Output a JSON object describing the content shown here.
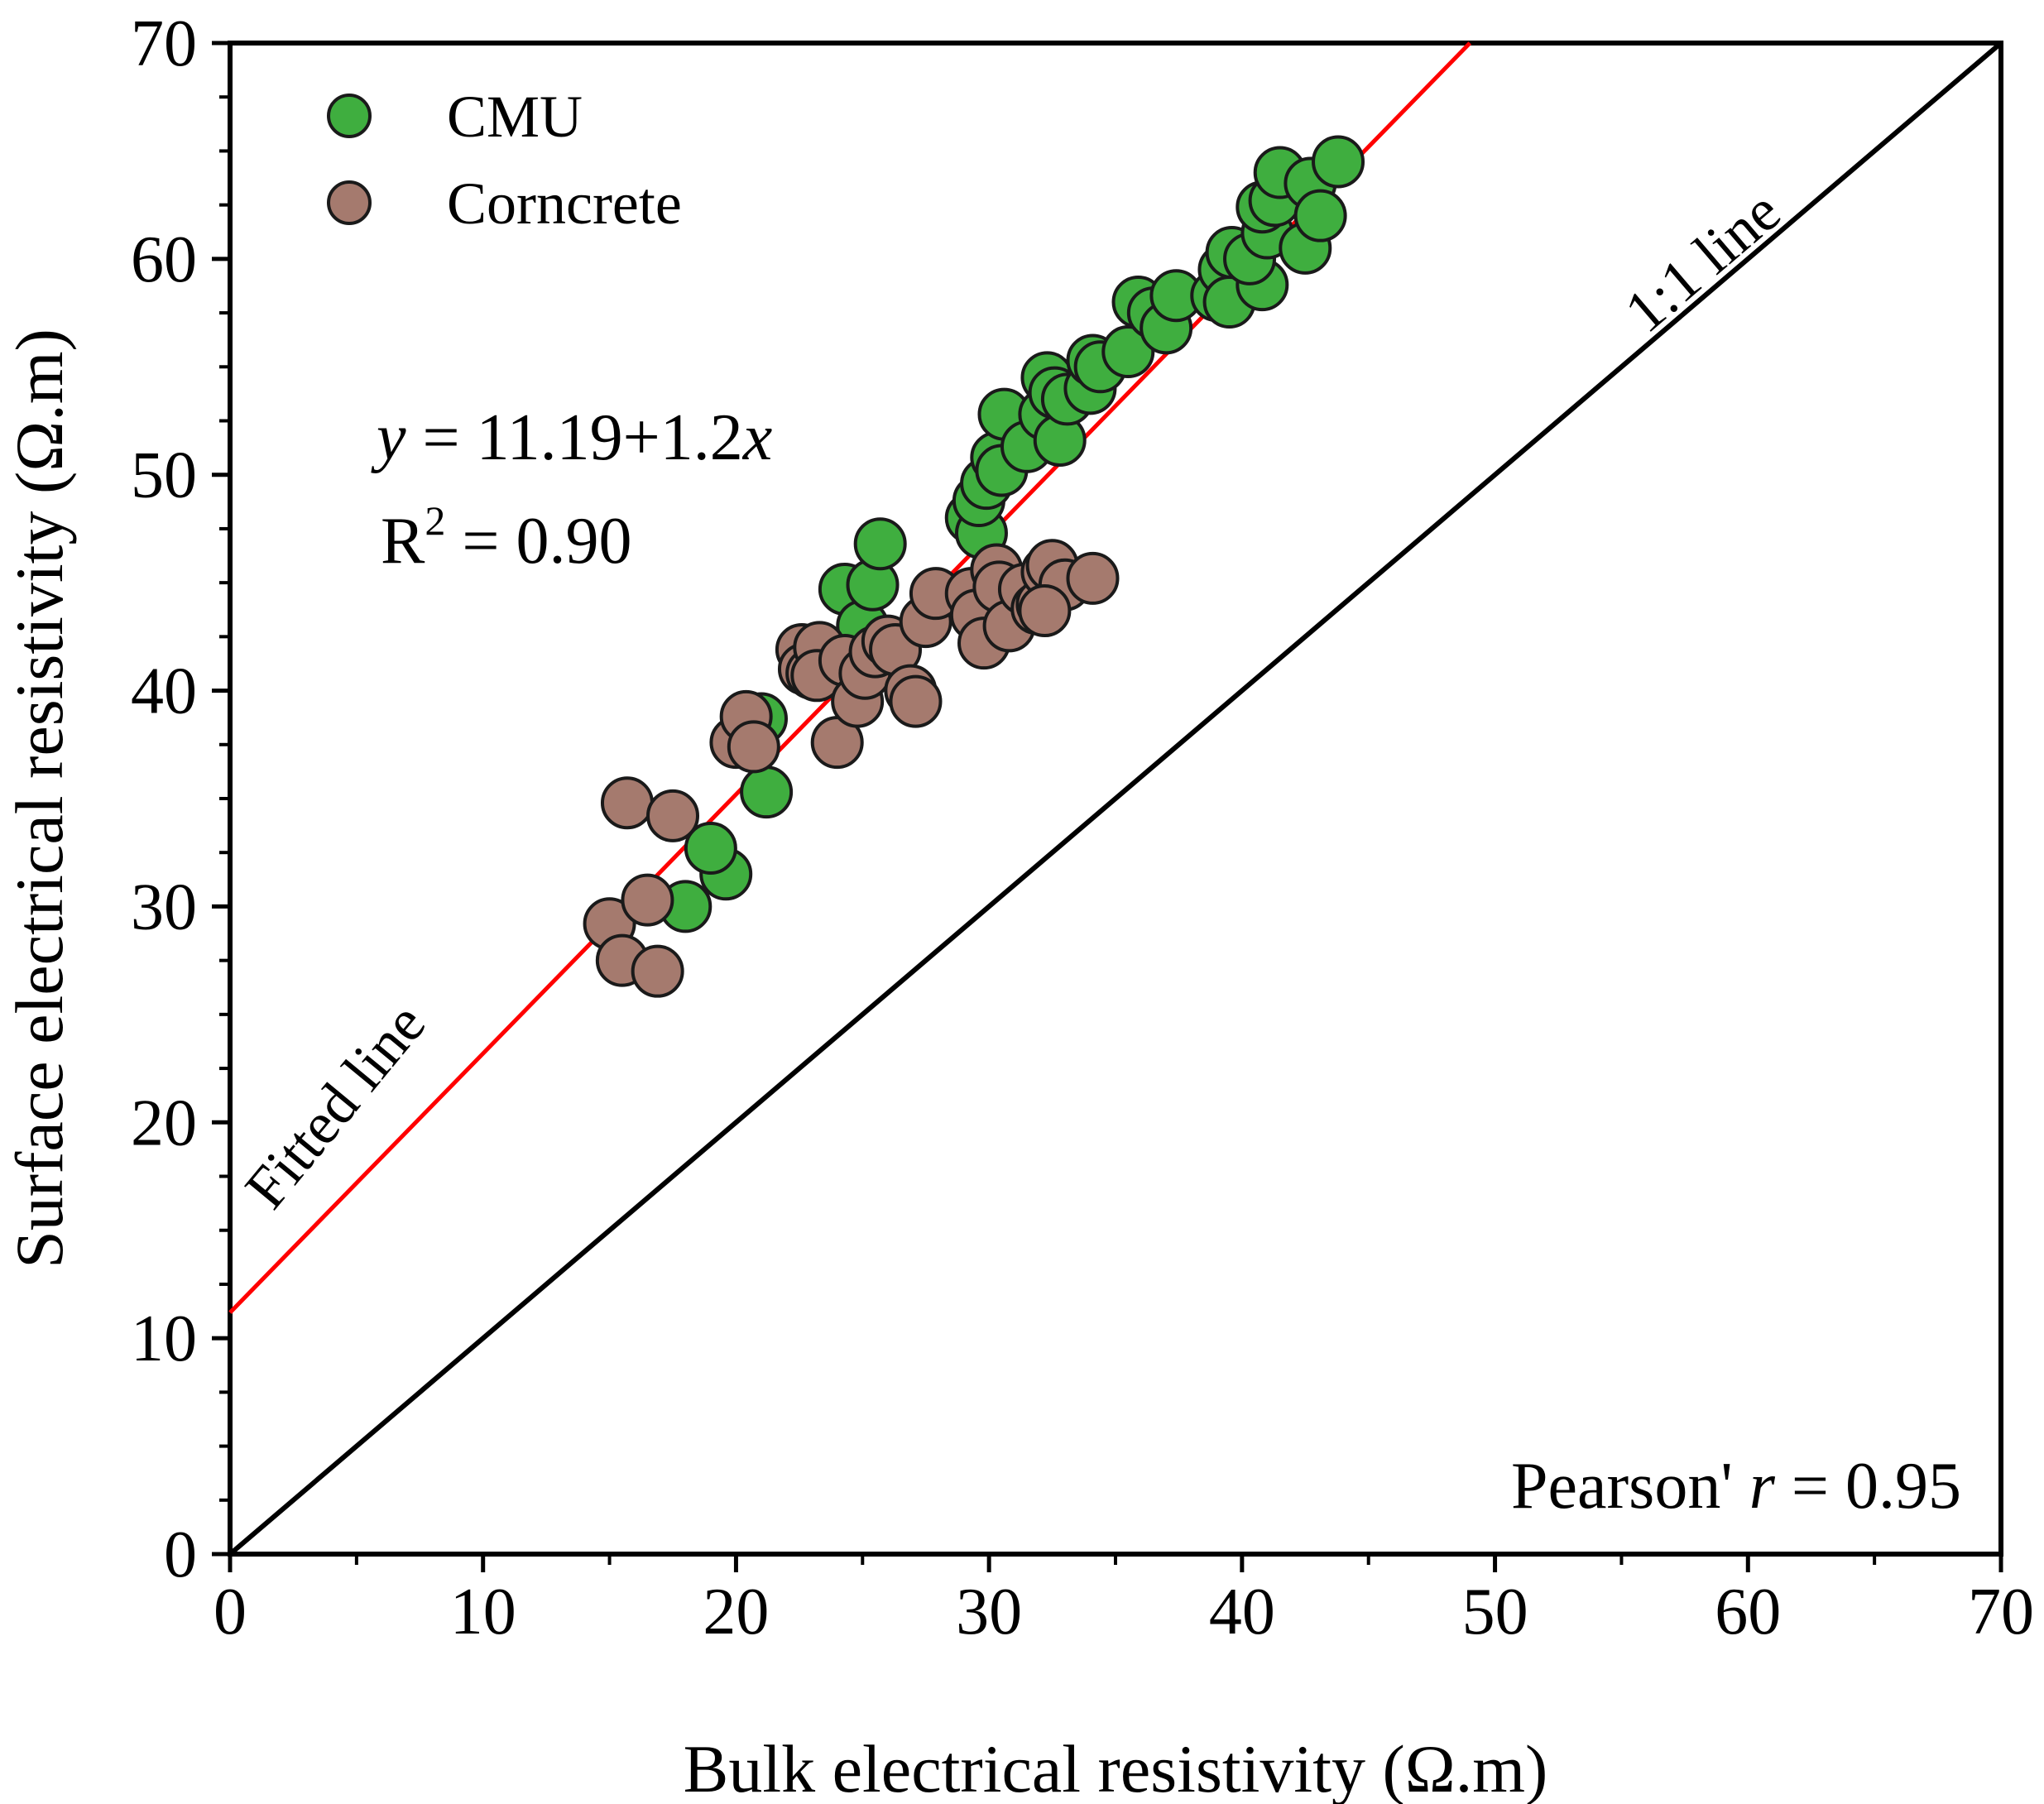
{
  "chart_data": {
    "type": "scatter",
    "xlabel": "Bulk electrical resistivity (Ω.m)",
    "ylabel": "Surface electrical resistivity (Ω.m)",
    "xlim": [
      0,
      70
    ],
    "ylim": [
      0,
      70
    ],
    "xticks": [
      "0",
      "10",
      "20",
      "30",
      "40",
      "50",
      "60",
      "70"
    ],
    "yticks": [
      "0",
      "10",
      "20",
      "30",
      "40",
      "50",
      "60",
      "70"
    ],
    "legend_position": "top-left",
    "series": [
      {
        "name": "CMU",
        "color": "#3fae3f",
        "points": [
          [
            18.0,
            30.0
          ],
          [
            19.6,
            31.5
          ],
          [
            19.0,
            32.7
          ],
          [
            21.2,
            35.3
          ],
          [
            21.0,
            38.7
          ],
          [
            24.3,
            44.7
          ],
          [
            25.0,
            43.0
          ],
          [
            25.4,
            44.9
          ],
          [
            25.7,
            46.8
          ],
          [
            29.3,
            48.0
          ],
          [
            29.7,
            47.3
          ],
          [
            29.6,
            48.8
          ],
          [
            29.9,
            49.6
          ],
          [
            30.3,
            50.8
          ],
          [
            30.5,
            50.2
          ],
          [
            30.6,
            52.8
          ],
          [
            31.5,
            51.3
          ],
          [
            32.2,
            52.8
          ],
          [
            32.3,
            54.5
          ],
          [
            32.8,
            51.6
          ],
          [
            32.6,
            53.8
          ],
          [
            33.1,
            53.5
          ],
          [
            34.0,
            54.0
          ],
          [
            34.1,
            55.3
          ],
          [
            34.4,
            55.0
          ],
          [
            35.5,
            55.7
          ],
          [
            35.9,
            58.0
          ],
          [
            36.5,
            57.5
          ],
          [
            37.0,
            56.8
          ],
          [
            37.4,
            58.3
          ],
          [
            39.0,
            58.3
          ],
          [
            39.3,
            59.5
          ],
          [
            39.6,
            60.3
          ],
          [
            39.5,
            58.0
          ],
          [
            40.8,
            58.8
          ],
          [
            40.3,
            60.0
          ],
          [
            41.0,
            61.2
          ],
          [
            40.8,
            62.4
          ],
          [
            41.3,
            62.7
          ],
          [
            41.5,
            64.0
          ],
          [
            42.5,
            60.5
          ],
          [
            42.7,
            63.5
          ],
          [
            43.1,
            62.0
          ],
          [
            43.8,
            64.5
          ]
        ]
      },
      {
        "name": "Corncrete",
        "color": "#a57a6e",
        "points": [
          [
            15.0,
            29.2
          ],
          [
            15.5,
            27.5
          ],
          [
            16.5,
            30.3
          ],
          [
            16.9,
            27.0
          ],
          [
            15.7,
            34.8
          ],
          [
            17.5,
            34.2
          ],
          [
            20.0,
            37.6
          ],
          [
            20.4,
            38.8
          ],
          [
            20.7,
            37.4
          ],
          [
            22.6,
            41.9
          ],
          [
            22.7,
            41.0
          ],
          [
            23.0,
            40.8
          ],
          [
            23.3,
            42.0
          ],
          [
            23.2,
            40.7
          ],
          [
            24.0,
            37.6
          ],
          [
            24.3,
            41.4
          ],
          [
            24.8,
            39.5
          ],
          [
            25.1,
            40.8
          ],
          [
            25.5,
            41.8
          ],
          [
            26.0,
            42.3
          ],
          [
            26.3,
            41.9
          ],
          [
            26.9,
            40.0
          ],
          [
            27.1,
            39.5
          ],
          [
            27.5,
            43.2
          ],
          [
            27.9,
            44.5
          ],
          [
            29.3,
            44.5
          ],
          [
            29.5,
            43.5
          ],
          [
            29.8,
            42.2
          ],
          [
            30.3,
            45.6
          ],
          [
            30.4,
            44.8
          ],
          [
            30.8,
            43.0
          ],
          [
            31.4,
            44.7
          ],
          [
            31.9,
            43.8
          ],
          [
            32.1,
            44.0
          ],
          [
            32.3,
            45.5
          ],
          [
            32.5,
            45.8
          ],
          [
            33.0,
            44.9
          ],
          [
            34.1,
            45.2
          ],
          [
            32.2,
            43.7
          ]
        ]
      }
    ],
    "fit_line": {
      "intercept": 11.19,
      "slope": 1.2,
      "color": "#ff0000"
    },
    "identity_line": {
      "slope": 1.0,
      "intercept": 0,
      "color": "#000000"
    },
    "labels": {
      "fitted_line": "Fitted line",
      "identity_line": "1:1 line",
      "equation_y": "y",
      "equation_mid": " = 11.19+1.2",
      "equation_x": "x",
      "r2_prefix": "R",
      "r2_sup": "2",
      "r2_value": " = 0.90",
      "pearson_prefix": "Pearson' ",
      "pearson_r": "r",
      "pearson_value": " = 0.95"
    }
  }
}
